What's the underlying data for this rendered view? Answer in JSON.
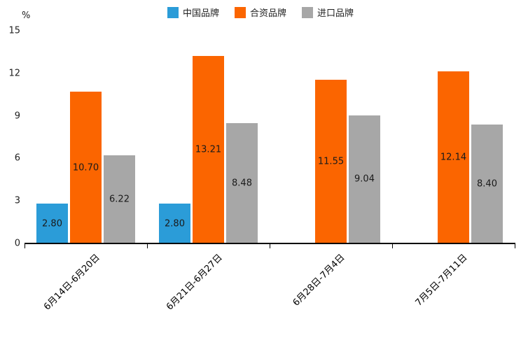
{
  "colors": {
    "china_brand": "#2B9CD8",
    "joint_venture_brand": "#FB6500",
    "import_brand": "#A7A7A7",
    "axis": "#000000",
    "label_text": "#1a1a1a"
  },
  "legend": [
    {
      "label": "中国品牌",
      "color": "#2B9CD8"
    },
    {
      "label": "合资品牌",
      "color": "#FB6500"
    },
    {
      "label": "进口品牌",
      "color": "#A7A7A7"
    }
  ],
  "chart_data": {
    "type": "bar",
    "title": "",
    "categories": [
      "6月14日-6月20日",
      "6月21日-6月27日",
      "6月28日-7月4日",
      "7月5日-7月11日"
    ],
    "series": [
      {
        "name": "中国品牌",
        "color": "#2B9CD8",
        "values": [
          2.8,
          2.8,
          null,
          null
        ]
      },
      {
        "name": "合资品牌",
        "color": "#FB6500",
        "values": [
          10.7,
          13.21,
          11.55,
          12.14
        ]
      },
      {
        "name": "进口品牌",
        "color": "#A7A7A7",
        "values": [
          6.22,
          8.48,
          9.04,
          8.4
        ]
      }
    ],
    "xlabel": "",
    "ylabel": "%",
    "yticks": [
      0,
      3,
      6,
      9,
      12,
      15
    ],
    "ylim": [
      0,
      15
    ],
    "grid": false,
    "legend_position": "top",
    "x_label_rotation": 45,
    "value_labels": "inside, 2 decimal places"
  }
}
